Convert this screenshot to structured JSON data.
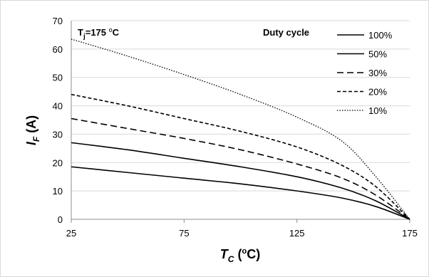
{
  "chart_data": {
    "type": "line",
    "xlabel": {
      "main": "T",
      "sub": "C",
      "units_pre": " (",
      "units_sup": "o",
      "units_post": "C)"
    },
    "ylabel": {
      "main": "I",
      "sub": "F",
      "units": " (A)"
    },
    "xlim": [
      25,
      175
    ],
    "ylim": [
      0,
      70
    ],
    "xticks": [
      25,
      75,
      125,
      175
    ],
    "yticks": [
      0,
      10,
      20,
      30,
      40,
      50,
      60,
      70
    ],
    "grid": true,
    "legend_title": "Duty cycle",
    "legend_position": "top-right",
    "annotation": {
      "prefix": "T",
      "sub": "j",
      "mid": "=175 ",
      "sup": "o",
      "suffix": "C"
    },
    "series": [
      {
        "name": "100%",
        "style": "solid",
        "x": [
          25,
          50,
          75,
          100,
          125,
          145,
          160,
          175
        ],
        "values": [
          18.5,
          16.5,
          14.5,
          12.5,
          10,
          7.5,
          4.5,
          0
        ]
      },
      {
        "name": "50%",
        "style": "solid",
        "x": [
          25,
          50,
          75,
          100,
          125,
          145,
          160,
          175
        ],
        "values": [
          27,
          24.5,
          21.5,
          18.5,
          15,
          11,
          6.5,
          0
        ]
      },
      {
        "name": "30%",
        "style": "dashed",
        "x": [
          25,
          50,
          75,
          100,
          125,
          145,
          160,
          175
        ],
        "values": [
          35.5,
          32,
          28.5,
          24.5,
          19.5,
          14.5,
          8.5,
          0
        ]
      },
      {
        "name": "20%",
        "style": "dashed-short",
        "x": [
          25,
          50,
          75,
          100,
          125,
          145,
          160,
          175
        ],
        "values": [
          44,
          40,
          35.5,
          31,
          25.5,
          19,
          11.5,
          0
        ]
      },
      {
        "name": "10%",
        "style": "dotted",
        "x": [
          25,
          50,
          75,
          100,
          125,
          145,
          160,
          175
        ],
        "values": [
          63.5,
          57.5,
          51,
          44,
          36,
          27.5,
          15,
          0
        ]
      }
    ]
  }
}
